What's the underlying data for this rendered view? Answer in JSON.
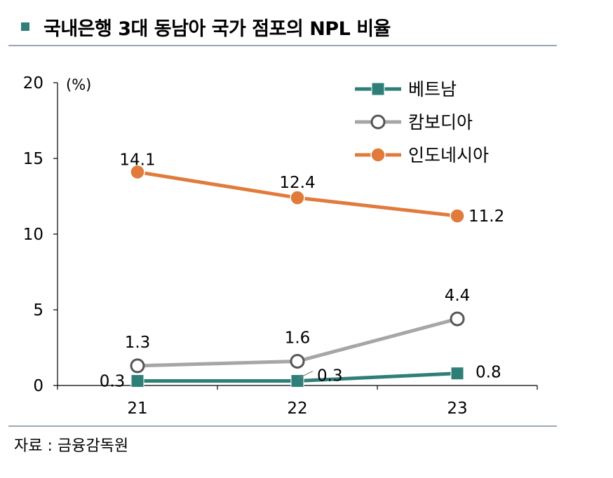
{
  "header": {
    "title": "국내은행 3대 동남아 국가 점포의 NPL 비율"
  },
  "footer": {
    "source": "자료 : 금융감독원"
  },
  "chart_data": {
    "type": "line",
    "title": "국내은행 3대 동남아 국가 점포의 NPL 비율",
    "ylabel": "(%)",
    "xlabel": "",
    "categories": [
      "21",
      "22",
      "23"
    ],
    "ylim": [
      0,
      20
    ],
    "yticks": [
      "0",
      "5",
      "10",
      "15",
      "20"
    ],
    "legend_position": "top-right",
    "series": [
      {
        "name": "베트남",
        "values": [
          0.3,
          0.3,
          0.8
        ],
        "labels": [
          "0.3",
          "0.3",
          "0.8"
        ],
        "color": "#2f7f78",
        "marker": "square"
      },
      {
        "name": "캄보디아",
        "values": [
          1.3,
          1.6,
          4.4
        ],
        "labels": [
          "1.3",
          "1.6",
          "4.4"
        ],
        "color": "#a6a6a6",
        "marker": "hollow-circle"
      },
      {
        "name": "인도네시아",
        "values": [
          14.1,
          12.4,
          11.2
        ],
        "labels": [
          "14.1",
          "12.4",
          "11.2"
        ],
        "color": "#e07b3c",
        "marker": "circle"
      }
    ]
  }
}
